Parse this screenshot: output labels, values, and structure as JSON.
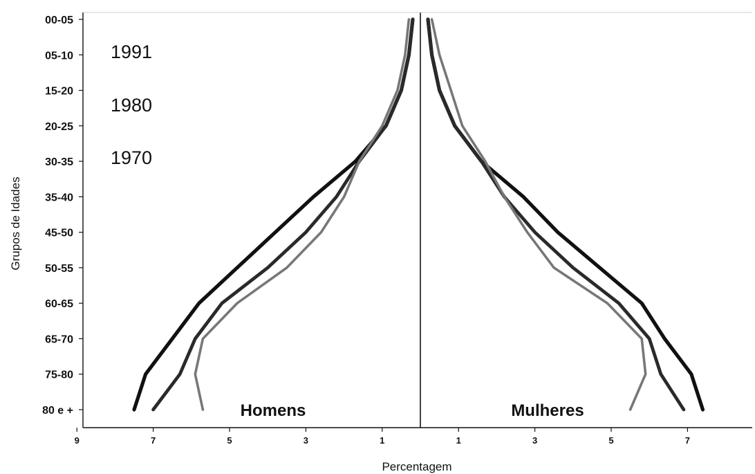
{
  "chart_data": {
    "type": "line",
    "ylabel": "Grupos de Idades",
    "xlabel": "Percentagem",
    "y_tick_labels": [
      "80 e +",
      "75-80",
      "65-70",
      "60-65",
      "50-55",
      "45-50",
      "35-40",
      "30-35",
      "20-25",
      "15-20",
      "05-10",
      "00-05"
    ],
    "x_tick_labels": [
      "9",
      "7",
      "5",
      "3",
      "1",
      "1",
      "3",
      "5",
      "7",
      "9"
    ],
    "xlim": [
      -9,
      9
    ],
    "sections": {
      "male": "Homens",
      "female": "Mulheres"
    },
    "year_labels": [
      "1991",
      "1980",
      "1970"
    ],
    "series": [
      {
        "name": "1970",
        "color": "#111111",
        "male": [
          7.5,
          7.2,
          6.5,
          5.8,
          4.8,
          3.8,
          2.8,
          1.7,
          0.9,
          0.5,
          0.3,
          0.2
        ],
        "female": [
          7.4,
          7.1,
          6.4,
          5.8,
          4.7,
          3.6,
          2.7,
          1.6,
          0.9,
          0.5,
          0.3,
          0.2
        ]
      },
      {
        "name": "1980",
        "color": "#2a2a2a",
        "male": [
          7.0,
          6.3,
          5.9,
          5.2,
          4.0,
          3.0,
          2.2,
          1.6,
          0.9,
          0.5,
          0.3,
          0.2
        ],
        "female": [
          6.9,
          6.3,
          6.0,
          5.2,
          4.0,
          3.0,
          2.2,
          1.6,
          0.9,
          0.5,
          0.3,
          0.2
        ]
      },
      {
        "name": "1991",
        "color": "#777777",
        "male": [
          5.7,
          5.9,
          5.7,
          4.8,
          3.5,
          2.6,
          2.0,
          1.6,
          1.0,
          0.6,
          0.4,
          0.3
        ],
        "female": [
          5.5,
          5.9,
          5.8,
          4.9,
          3.5,
          2.8,
          2.2,
          1.7,
          1.1,
          0.8,
          0.5,
          0.3
        ]
      }
    ]
  }
}
